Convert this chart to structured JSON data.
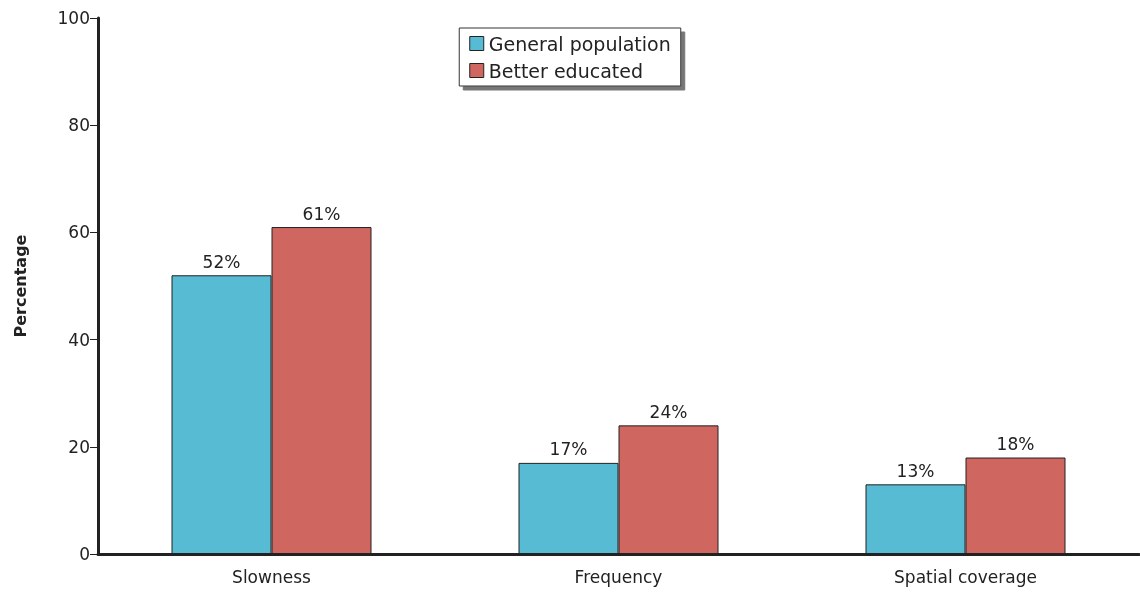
{
  "chart_data": {
    "type": "bar",
    "ylabel": "Percentage",
    "categories": [
      "Slowness",
      "Frequency",
      "Spatial coverage"
    ],
    "series": [
      {
        "name": "General population",
        "color": "#56bbd3",
        "values": [
          52,
          17,
          13
        ],
        "value_labels": [
          "52%",
          "17%",
          "13%"
        ]
      },
      {
        "name": "Better educated",
        "color": "#cf665f",
        "values": [
          61,
          24,
          18
        ],
        "value_labels": [
          "61%",
          "24%",
          "18%"
        ]
      }
    ],
    "ylim": [
      0,
      100
    ],
    "yticks": [
      0,
      20,
      40,
      60,
      80,
      100
    ],
    "grid": false,
    "legend": "top"
  }
}
